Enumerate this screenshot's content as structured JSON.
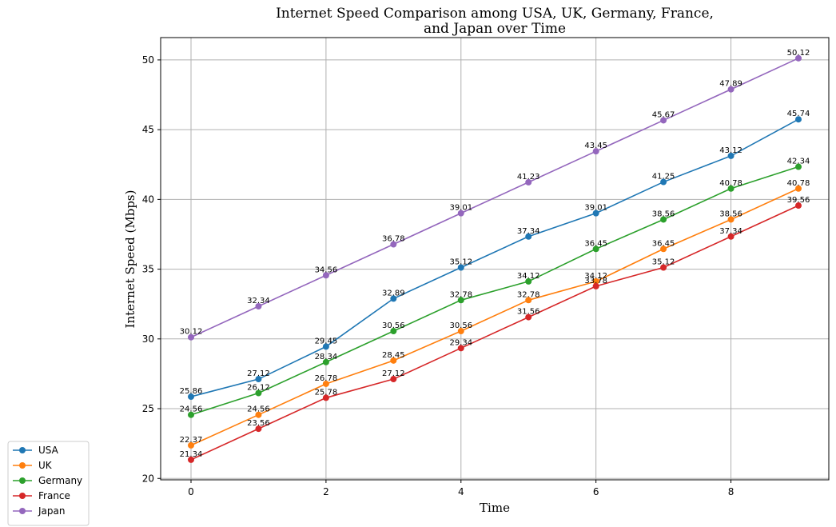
{
  "chart_data": {
    "type": "line",
    "title_lines": [
      "Internet Speed Comparison among USA, UK, Germany, France,",
      "and Japan over Time"
    ],
    "xlabel": "Time",
    "ylabel": "Internet Speed (Mbps)",
    "xlim": [
      -0.45,
      9.45
    ],
    "ylim": [
      19.9,
      51.6
    ],
    "xticks": [
      0,
      2,
      4,
      6,
      8
    ],
    "yticks": [
      20,
      25,
      30,
      35,
      40,
      45,
      50
    ],
    "grid": true,
    "legend_position": "bottom-left",
    "x": [
      0,
      1,
      2,
      3,
      4,
      5,
      6,
      7,
      8,
      9
    ],
    "series": [
      {
        "name": "USA",
        "color": "#1f77b4",
        "values": [
          25.86,
          27.12,
          29.45,
          32.89,
          35.12,
          37.34,
          39.01,
          41.25,
          43.12,
          45.74
        ]
      },
      {
        "name": "UK",
        "color": "#ff7f0e",
        "values": [
          22.37,
          24.56,
          26.78,
          28.45,
          30.56,
          32.78,
          34.12,
          36.45,
          38.56,
          40.78
        ]
      },
      {
        "name": "Germany",
        "color": "#2ca02c",
        "values": [
          24.56,
          26.12,
          28.34,
          30.56,
          32.78,
          34.12,
          36.45,
          38.56,
          40.78,
          42.34
        ]
      },
      {
        "name": "France",
        "color": "#d62728",
        "values": [
          21.34,
          23.56,
          25.78,
          27.12,
          29.34,
          31.56,
          33.78,
          35.12,
          37.34,
          39.56
        ]
      },
      {
        "name": "Japan",
        "color": "#9467bd",
        "values": [
          30.12,
          32.34,
          34.56,
          36.78,
          39.01,
          41.23,
          43.45,
          45.67,
          47.89,
          50.12
        ]
      }
    ]
  }
}
